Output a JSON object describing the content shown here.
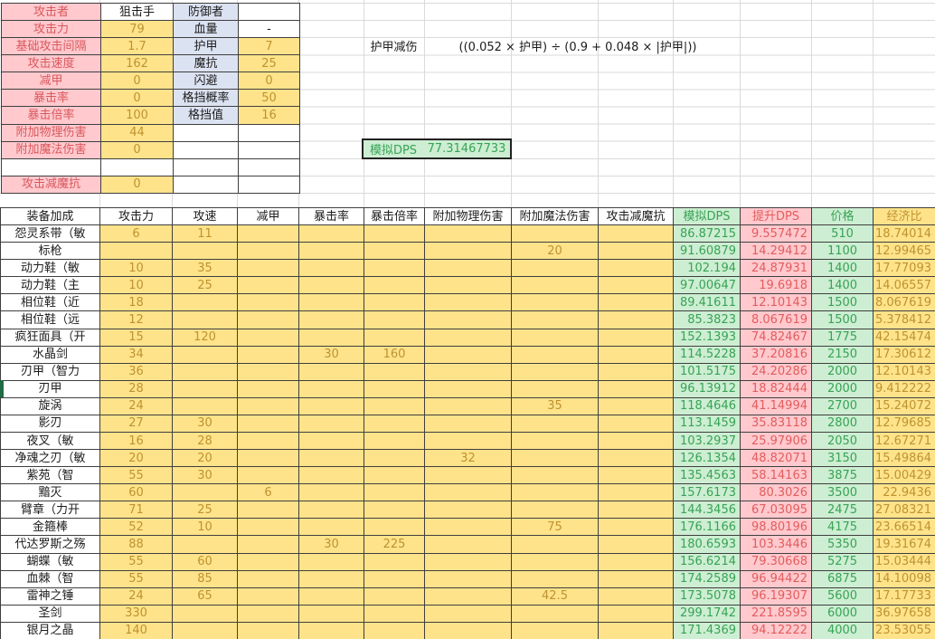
{
  "colors": {
    "pink_bg": "#ffc9ce",
    "pink_text": "#d8585c",
    "red_text": "#e25d5d",
    "yellow_bg": "#ffe38a",
    "yellow_text": "#bd9331",
    "blue_bg": "#dbe2f1",
    "green_bg": "#cdeed2",
    "green_text": "#38a356",
    "grid_line": "#dadada",
    "cell_border": "#3f3f3f",
    "marker": "#1e6b45",
    "box_border": "#222222",
    "text": "#1c1c1c"
  },
  "stats_block": {
    "rows": [
      [
        {
          "t": "攻击者",
          "s": "pink"
        },
        {
          "t": "狙击手",
          "s": "plain"
        },
        {
          "t": "防御者",
          "s": "blue"
        },
        {
          "t": "",
          "s": "plain"
        }
      ],
      [
        {
          "t": "攻击力",
          "s": "pink"
        },
        {
          "t": "79",
          "s": "yellow"
        },
        {
          "t": "血量",
          "s": "blue"
        },
        {
          "t": "-",
          "s": "plain"
        }
      ],
      [
        {
          "t": "基础攻击间隔",
          "s": "pink"
        },
        {
          "t": "1.7",
          "s": "yellow"
        },
        {
          "t": "护甲",
          "s": "blue"
        },
        {
          "t": "7",
          "s": "yellow"
        }
      ],
      [
        {
          "t": "攻击速度",
          "s": "pink"
        },
        {
          "t": "162",
          "s": "yellow"
        },
        {
          "t": "魔抗",
          "s": "blue"
        },
        {
          "t": "25",
          "s": "yellow"
        }
      ],
      [
        {
          "t": "减甲",
          "s": "pink"
        },
        {
          "t": "0",
          "s": "yellow"
        },
        {
          "t": "闪避",
          "s": "blue"
        },
        {
          "t": "0",
          "s": "yellow"
        }
      ],
      [
        {
          "t": "暴击率",
          "s": "pink"
        },
        {
          "t": "0",
          "s": "yellow"
        },
        {
          "t": "格挡概率",
          "s": "blue"
        },
        {
          "t": "50",
          "s": "yellow"
        }
      ],
      [
        {
          "t": "暴击倍率",
          "s": "pink"
        },
        {
          "t": "100",
          "s": "yellow"
        },
        {
          "t": "格挡值",
          "s": "blue"
        },
        {
          "t": "16",
          "s": "yellow"
        }
      ],
      [
        {
          "t": "附加物理伤害",
          "s": "pink"
        },
        {
          "t": "44",
          "s": "yellow"
        },
        {
          "t": "",
          "s": "plain"
        },
        {
          "t": "",
          "s": "plain"
        }
      ],
      [
        {
          "t": "附加魔法伤害",
          "s": "pink"
        },
        {
          "t": "0",
          "s": "yellow"
        },
        {
          "t": "",
          "s": "plain"
        },
        {
          "t": "",
          "s": "plain"
        }
      ],
      [
        {
          "t": "",
          "s": "plain"
        },
        {
          "t": "",
          "s": "plain"
        },
        {
          "t": "",
          "s": "plain"
        },
        {
          "t": "",
          "s": "plain"
        }
      ],
      [
        {
          "t": "攻击减魔抗",
          "s": "pink"
        },
        {
          "t": "0",
          "s": "yellow"
        },
        {
          "t": "",
          "s": "plain"
        },
        {
          "t": "",
          "s": "plain"
        }
      ]
    ]
  },
  "formula": {
    "label": "护甲减伤",
    "expression": "((0.052 × 护甲) ÷ (0.9 + 0.048 × |护甲|))"
  },
  "simulation": {
    "label": "模拟DPS",
    "value": "77.31467733"
  },
  "equipment_table": {
    "headers": [
      {
        "t": "装备加成",
        "s": "plain"
      },
      {
        "t": "攻击力",
        "s": "plain"
      },
      {
        "t": "攻速",
        "s": "plain"
      },
      {
        "t": "减甲",
        "s": "plain"
      },
      {
        "t": "暴击率",
        "s": "plain"
      },
      {
        "t": "暴击倍率",
        "s": "plain"
      },
      {
        "t": "附加物理伤害",
        "s": "plain"
      },
      {
        "t": "附加魔法伤害",
        "s": "plain"
      },
      {
        "t": "攻击减魔抗",
        "s": "plain"
      },
      {
        "t": "模拟DPS",
        "s": "green"
      },
      {
        "t": "提升DPS",
        "s": "pinkv"
      },
      {
        "t": "价格",
        "s": "green"
      },
      {
        "t": "经济比",
        "s": "yellow"
      }
    ],
    "rows": [
      [
        "怨灵系带（敏",
        "6",
        "11",
        "",
        "",
        "",
        "",
        "",
        "",
        "86.87215",
        "9.557472",
        "510",
        "18.74014"
      ],
      [
        "标枪",
        "",
        "",
        "",
        "",
        "",
        "",
        "20",
        "",
        "91.60879",
        "14.29412",
        "1100",
        "12.99465"
      ],
      [
        "动力鞋（敏",
        "10",
        "35",
        "",
        "",
        "",
        "",
        "",
        "",
        "102.194",
        "24.87931",
        "1400",
        "17.77093"
      ],
      [
        "动力鞋（主",
        "10",
        "25",
        "",
        "",
        "",
        "",
        "",
        "",
        "97.00647",
        "19.6918",
        "1400",
        "14.06557"
      ],
      [
        "相位鞋（近",
        "18",
        "",
        "",
        "",
        "",
        "",
        "",
        "",
        "89.41611",
        "12.10143",
        "1500",
        "8.067619"
      ],
      [
        "相位鞋（远",
        "12",
        "",
        "",
        "",
        "",
        "",
        "",
        "",
        "85.3823",
        "8.067619",
        "1500",
        "5.378412"
      ],
      [
        "疯狂面具（开",
        "15",
        "120",
        "",
        "",
        "",
        "",
        "",
        "",
        "152.1393",
        "74.82467",
        "1775",
        "42.15474"
      ],
      [
        "水晶剑",
        "34",
        "",
        "",
        "30",
        "160",
        "",
        "",
        "",
        "114.5228",
        "37.20816",
        "2150",
        "17.30612"
      ],
      [
        "刃甲（智力",
        "36",
        "",
        "",
        "",
        "",
        "",
        "",
        "",
        "101.5175",
        "24.20286",
        "2000",
        "12.10143"
      ],
      [
        "刃甲",
        "28",
        "",
        "",
        "",
        "",
        "",
        "",
        "",
        "96.13912",
        "18.82444",
        "2000",
        "9.412222"
      ],
      [
        "旋涡",
        "24",
        "",
        "",
        "",
        "",
        "",
        "35",
        "",
        "118.4646",
        "41.14994",
        "2700",
        "15.24072"
      ],
      [
        "影刃",
        "27",
        "30",
        "",
        "",
        "",
        "",
        "",
        "",
        "113.1459",
        "35.83118",
        "2800",
        "12.79685"
      ],
      [
        "夜叉（敏",
        "16",
        "28",
        "",
        "",
        "",
        "",
        "",
        "",
        "103.2937",
        "25.97906",
        "2050",
        "12.67271"
      ],
      [
        "净魂之刃（敏",
        "20",
        "20",
        "",
        "",
        "",
        "32",
        "",
        "",
        "126.1354",
        "48.82071",
        "3150",
        "15.49864"
      ],
      [
        "紫苑（智",
        "55",
        "30",
        "",
        "",
        "",
        "",
        "",
        "",
        "135.4563",
        "58.14163",
        "3875",
        "15.00429"
      ],
      [
        "黯灭",
        "60",
        "",
        "6",
        "",
        "",
        "",
        "",
        "",
        "157.6173",
        "80.3026",
        "3500",
        "22.9436"
      ],
      [
        "臂章（力开",
        "71",
        "25",
        "",
        "",
        "",
        "",
        "",
        "",
        "144.3456",
        "67.03095",
        "2475",
        "27.08321"
      ],
      [
        "金箍棒",
        "52",
        "10",
        "",
        "",
        "",
        "",
        "75",
        "",
        "176.1166",
        "98.80196",
        "4175",
        "23.66514"
      ],
      [
        "代达罗斯之殇",
        "88",
        "",
        "",
        "30",
        "225",
        "",
        "",
        "",
        "180.6593",
        "103.3446",
        "5350",
        "19.31674"
      ],
      [
        "蝴蝶（敏",
        "55",
        "60",
        "",
        "",
        "",
        "",
        "",
        "",
        "156.6214",
        "79.30668",
        "5275",
        "15.03444"
      ],
      [
        "血棘（智",
        "55",
        "85",
        "",
        "",
        "",
        "",
        "",
        "",
        "174.2589",
        "96.94422",
        "6875",
        "14.10098"
      ],
      [
        "雷神之锤",
        "24",
        "65",
        "",
        "",
        "",
        "",
        "42.5",
        "",
        "173.5078",
        "96.19307",
        "5600",
        "17.17733"
      ],
      [
        "圣剑",
        "330",
        "",
        "",
        "",
        "",
        "",
        "",
        "",
        "299.1742",
        "221.8595",
        "6000",
        "36.97658"
      ],
      [
        "银月之晶",
        "140",
        "",
        "",
        "",
        "",
        "",
        "",
        "",
        "171.4369",
        "94.12222",
        "4000",
        "23.53055"
      ]
    ]
  }
}
